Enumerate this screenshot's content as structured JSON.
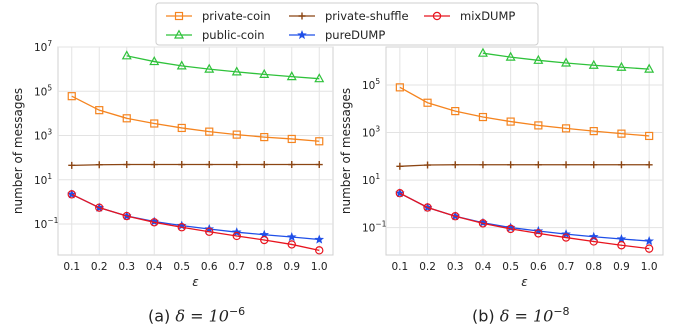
{
  "legend": {
    "entries": [
      "private-coin",
      "public-coin",
      "private-shuffle",
      "pureDUMP",
      "mixDUMP"
    ],
    "placement": "top-center",
    "columns": 3
  },
  "colors": {
    "private-coin": "#f5841f",
    "public-coin": "#2fc23b",
    "private-shuffle": "#8b4513",
    "pureDUMP": "#1f4fe8",
    "mixDUMP": "#e8141e"
  },
  "markers": {
    "private-coin": "square",
    "public-coin": "triangle",
    "private-shuffle": "plus",
    "pureDUMP": "star",
    "mixDUMP": "circle"
  },
  "captions": {
    "a_prefix": "(a) ",
    "a_math": "δ = 10",
    "a_exp": "−6",
    "b_prefix": "(b) ",
    "b_math": "δ = 10",
    "b_exp": "−8"
  },
  "chart_data": [
    {
      "type": "line",
      "xlabel": "ε",
      "ylabel": "number of messages",
      "yscale": "log",
      "x_ticks": [
        "0.1",
        "0.2",
        "0.3",
        "0.4",
        "0.5",
        "0.6",
        "0.7",
        "0.8",
        "0.9",
        "1.0"
      ],
      "y_ticks": [
        {
          "v": 0.1,
          "base": "10",
          "exp": "−1"
        },
        {
          "v": 10,
          "base": "10",
          "exp": "1"
        },
        {
          "v": 1000,
          "base": "10",
          "exp": "3"
        },
        {
          "v": 100000,
          "base": "10",
          "exp": "5"
        },
        {
          "v": 10000000,
          "base": "10",
          "exp": "7"
        }
      ],
      "xlim": [
        0.05,
        1.05
      ],
      "ylim": [
        0.004,
        10000000
      ],
      "grid": true,
      "series": [
        {
          "name": "private-coin",
          "x": [
            0.1,
            0.2,
            0.3,
            0.4,
            0.5,
            0.6,
            0.7,
            0.8,
            0.9,
            1.0
          ],
          "y": [
            60000,
            14000,
            6000,
            3500,
            2200,
            1500,
            1100,
            850,
            700,
            550
          ]
        },
        {
          "name": "public-coin",
          "x": [
            0.3,
            0.4,
            0.5,
            0.6,
            0.7,
            0.8,
            0.9,
            1.0
          ],
          "y": [
            4000000,
            2200000,
            1400000,
            1000000,
            750000,
            580000,
            460000,
            370000
          ]
        },
        {
          "name": "private-shuffle",
          "x": [
            0.1,
            0.2,
            0.3,
            0.4,
            0.5,
            0.6,
            0.7,
            0.8,
            0.9,
            1.0
          ],
          "y": [
            45,
            48,
            49,
            49,
            49,
            49,
            49,
            49,
            49,
            49
          ]
        },
        {
          "name": "pureDUMP",
          "x": [
            0.1,
            0.2,
            0.3,
            0.4,
            0.5,
            0.6,
            0.7,
            0.8,
            0.9,
            1.0
          ],
          "y": [
            2.2,
            0.55,
            0.23,
            0.13,
            0.085,
            0.06,
            0.043,
            0.033,
            0.026,
            0.02
          ]
        },
        {
          "name": "mixDUMP",
          "x": [
            0.1,
            0.2,
            0.3,
            0.4,
            0.5,
            0.6,
            0.7,
            0.8,
            0.9,
            1.0
          ],
          "y": [
            2.2,
            0.55,
            0.23,
            0.12,
            0.072,
            0.045,
            0.029,
            0.019,
            0.012,
            0.0065
          ]
        }
      ]
    },
    {
      "type": "line",
      "xlabel": "ε",
      "ylabel": "number of messages",
      "yscale": "log",
      "x_ticks": [
        "0.1",
        "0.2",
        "0.3",
        "0.4",
        "0.5",
        "0.6",
        "0.7",
        "0.8",
        "0.9",
        "1.0"
      ],
      "y_ticks": [
        {
          "v": 0.1,
          "base": "10",
          "exp": "−1"
        },
        {
          "v": 10,
          "base": "10",
          "exp": "1"
        },
        {
          "v": 1000,
          "base": "10",
          "exp": "3"
        },
        {
          "v": 100000,
          "base": "10",
          "exp": "5"
        }
      ],
      "xlim": [
        0.05,
        1.05
      ],
      "ylim": [
        0.007,
        4000000
      ],
      "grid": true,
      "series": [
        {
          "name": "private-coin",
          "x": [
            0.1,
            0.2,
            0.3,
            0.4,
            0.5,
            0.6,
            0.7,
            0.8,
            0.9,
            1.0
          ],
          "y": [
            80000,
            18000,
            8000,
            4500,
            2900,
            2000,
            1500,
            1150,
            900,
            720
          ]
        },
        {
          "name": "public-coin",
          "x": [
            0.4,
            0.5,
            0.6,
            0.7,
            0.8,
            0.9,
            1.0
          ],
          "y": [
            2200000,
            1500000,
            1100000,
            850000,
            680000,
            560000,
            470000
          ]
        },
        {
          "name": "private-shuffle",
          "x": [
            0.1,
            0.2,
            0.3,
            0.4,
            0.5,
            0.6,
            0.7,
            0.8,
            0.9,
            1.0
          ],
          "y": [
            38,
            43,
            44,
            44,
            44,
            44,
            44,
            44,
            44,
            44
          ]
        },
        {
          "name": "pureDUMP",
          "x": [
            0.1,
            0.2,
            0.3,
            0.4,
            0.5,
            0.6,
            0.7,
            0.8,
            0.9,
            1.0
          ],
          "y": [
            2.8,
            0.7,
            0.3,
            0.16,
            0.1,
            0.072,
            0.053,
            0.041,
            0.033,
            0.027
          ]
        },
        {
          "name": "mixDUMP",
          "x": [
            0.1,
            0.2,
            0.3,
            0.4,
            0.5,
            0.6,
            0.7,
            0.8,
            0.9,
            1.0
          ],
          "y": [
            2.8,
            0.7,
            0.3,
            0.15,
            0.088,
            0.057,
            0.038,
            0.026,
            0.018,
            0.013
          ]
        }
      ]
    }
  ]
}
